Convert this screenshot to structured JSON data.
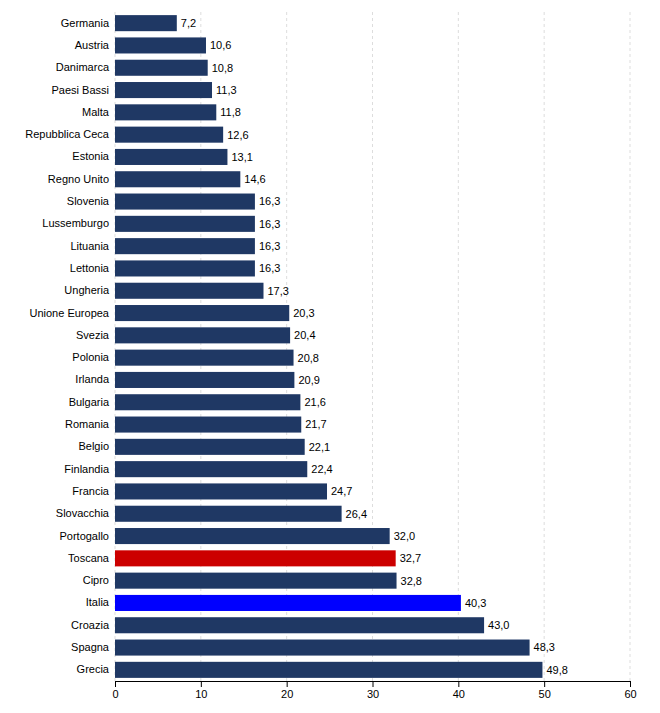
{
  "chart_data": {
    "type": "bar",
    "orientation": "horizontal",
    "categories": [
      "Germania",
      "Austria",
      "Danimarca",
      "Paesi Bassi",
      "Malta",
      "Repubblica Ceca",
      "Estonia",
      "Regno Unito",
      "Slovenia",
      "Lussemburgo",
      "Lituania",
      "Lettonia",
      "Ungheria",
      "Unione Europea",
      "Svezia",
      "Polonia",
      "Irlanda",
      "Bulgaria",
      "Romania",
      "Belgio",
      "Finlandia",
      "Francia",
      "Slovacchia",
      "Portogallo",
      "Toscana",
      "Cipro",
      "Italia",
      "Croazia",
      "Spagna",
      "Grecia"
    ],
    "values": [
      7.2,
      10.6,
      10.8,
      11.3,
      11.8,
      12.6,
      13.1,
      14.6,
      16.3,
      16.3,
      16.3,
      16.3,
      17.3,
      20.3,
      20.4,
      20.8,
      20.9,
      21.6,
      21.7,
      22.1,
      22.4,
      24.7,
      26.4,
      32.0,
      32.7,
      32.8,
      40.3,
      43.0,
      48.3,
      49.8
    ],
    "value_labels": [
      "7,2",
      "10,6",
      "10,8",
      "11,3",
      "11,8",
      "12,6",
      "13,1",
      "14,6",
      "16,3",
      "16,3",
      "16,3",
      "16,3",
      "17,3",
      "20,3",
      "20,4",
      "20,8",
      "20,9",
      "21,6",
      "21,7",
      "22,1",
      "22,4",
      "24,7",
      "26,4",
      "32,0",
      "32,7",
      "32,8",
      "40,3",
      "43,0",
      "48,3",
      "49,8"
    ],
    "colors": [
      "#1F3864",
      "#1F3864",
      "#1F3864",
      "#1F3864",
      "#1F3864",
      "#1F3864",
      "#1F3864",
      "#1F3864",
      "#1F3864",
      "#1F3864",
      "#1F3864",
      "#1F3864",
      "#1F3864",
      "#1F3864",
      "#1F3864",
      "#1F3864",
      "#1F3864",
      "#1F3864",
      "#1F3864",
      "#1F3864",
      "#1F3864",
      "#1F3864",
      "#1F3864",
      "#1F3864",
      "#CC0000",
      "#1F3864",
      "#0000FF",
      "#1F3864",
      "#1F3864",
      "#1F3864"
    ],
    "data_labels": true,
    "xlim": [
      0,
      60
    ],
    "xticks": [
      0,
      10,
      20,
      30,
      40,
      50,
      60
    ],
    "grid": true
  }
}
